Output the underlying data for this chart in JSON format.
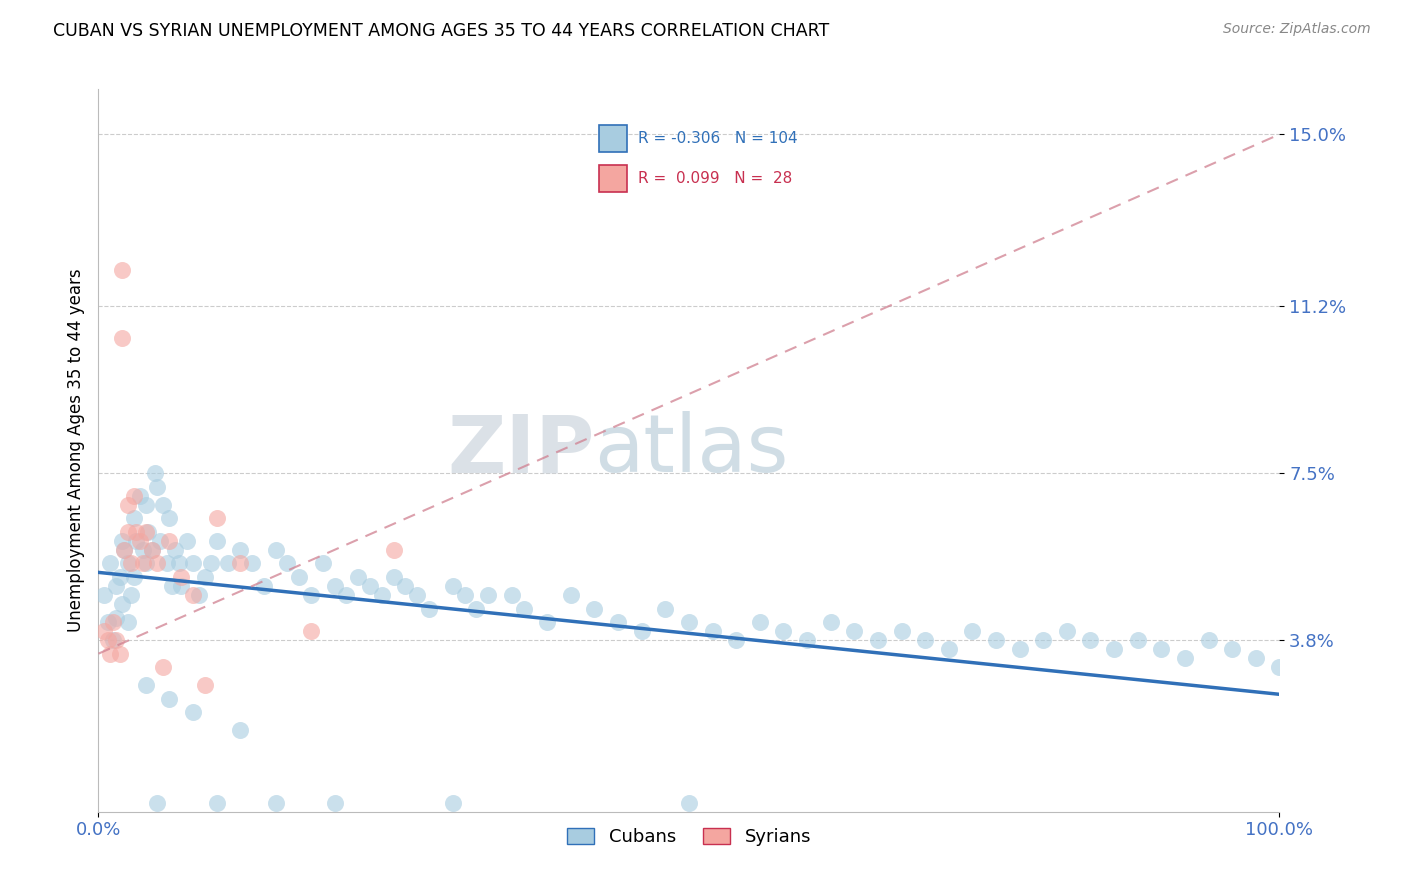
{
  "title": "CUBAN VS SYRIAN UNEMPLOYMENT AMONG AGES 35 TO 44 YEARS CORRELATION CHART",
  "source": "Source: ZipAtlas.com",
  "ylabel": "Unemployment Among Ages 35 to 44 years",
  "xlim": [
    0,
    1.0
  ],
  "ylim": [
    0,
    0.16
  ],
  "ytick_vals": [
    0.038,
    0.075,
    0.112,
    0.15
  ],
  "ytick_labels": [
    "3.8%",
    "7.5%",
    "11.2%",
    "15.0%"
  ],
  "xtick_vals": [
    0.0,
    1.0
  ],
  "xtick_labels": [
    "0.0%",
    "100.0%"
  ],
  "cubans_R": "-0.306",
  "cubans_N": "104",
  "syrians_R": "0.099",
  "syrians_N": "28",
  "blue_scatter_color": "#a8cce0",
  "pink_scatter_color": "#f4a6a0",
  "blue_line_color": "#3070b8",
  "pink_line_color": "#c83050",
  "pink_dash_color": "#d08090",
  "tick_color": "#4472c4",
  "watermark_zip": "ZIP",
  "watermark_atlas": "atlas",
  "cubans_x": [
    0.005,
    0.008,
    0.01,
    0.012,
    0.015,
    0.015,
    0.018,
    0.02,
    0.02,
    0.022,
    0.025,
    0.025,
    0.028,
    0.03,
    0.03,
    0.032,
    0.035,
    0.038,
    0.04,
    0.04,
    0.042,
    0.045,
    0.048,
    0.05,
    0.052,
    0.055,
    0.058,
    0.06,
    0.062,
    0.065,
    0.068,
    0.07,
    0.075,
    0.08,
    0.085,
    0.09,
    0.095,
    0.1,
    0.11,
    0.12,
    0.13,
    0.14,
    0.15,
    0.16,
    0.17,
    0.18,
    0.19,
    0.2,
    0.21,
    0.22,
    0.23,
    0.24,
    0.25,
    0.26,
    0.27,
    0.28,
    0.3,
    0.31,
    0.32,
    0.33,
    0.35,
    0.36,
    0.38,
    0.4,
    0.42,
    0.44,
    0.46,
    0.48,
    0.5,
    0.52,
    0.54,
    0.56,
    0.58,
    0.6,
    0.62,
    0.64,
    0.66,
    0.68,
    0.7,
    0.72,
    0.74,
    0.76,
    0.78,
    0.8,
    0.82,
    0.84,
    0.86,
    0.88,
    0.9,
    0.92,
    0.94,
    0.96,
    0.98,
    1.0,
    0.05,
    0.1,
    0.15,
    0.2,
    0.3,
    0.5,
    0.04,
    0.06,
    0.08,
    0.12
  ],
  "cubans_y": [
    0.048,
    0.042,
    0.055,
    0.038,
    0.05,
    0.043,
    0.052,
    0.06,
    0.046,
    0.058,
    0.055,
    0.042,
    0.048,
    0.065,
    0.052,
    0.06,
    0.07,
    0.058,
    0.068,
    0.055,
    0.062,
    0.058,
    0.075,
    0.072,
    0.06,
    0.068,
    0.055,
    0.065,
    0.05,
    0.058,
    0.055,
    0.05,
    0.06,
    0.055,
    0.048,
    0.052,
    0.055,
    0.06,
    0.055,
    0.058,
    0.055,
    0.05,
    0.058,
    0.055,
    0.052,
    0.048,
    0.055,
    0.05,
    0.048,
    0.052,
    0.05,
    0.048,
    0.052,
    0.05,
    0.048,
    0.045,
    0.05,
    0.048,
    0.045,
    0.048,
    0.048,
    0.045,
    0.042,
    0.048,
    0.045,
    0.042,
    0.04,
    0.045,
    0.042,
    0.04,
    0.038,
    0.042,
    0.04,
    0.038,
    0.042,
    0.04,
    0.038,
    0.04,
    0.038,
    0.036,
    0.04,
    0.038,
    0.036,
    0.038,
    0.04,
    0.038,
    0.036,
    0.038,
    0.036,
    0.034,
    0.038,
    0.036,
    0.034,
    0.032,
    0.002,
    0.002,
    0.002,
    0.002,
    0.002,
    0.002,
    0.028,
    0.025,
    0.022,
    0.018
  ],
  "syrians_x": [
    0.005,
    0.008,
    0.01,
    0.012,
    0.015,
    0.018,
    0.02,
    0.02,
    0.022,
    0.025,
    0.025,
    0.028,
    0.03,
    0.032,
    0.035,
    0.038,
    0.04,
    0.045,
    0.05,
    0.055,
    0.06,
    0.07,
    0.08,
    0.09,
    0.1,
    0.12,
    0.18,
    0.25
  ],
  "syrians_y": [
    0.04,
    0.038,
    0.035,
    0.042,
    0.038,
    0.035,
    0.12,
    0.105,
    0.058,
    0.068,
    0.062,
    0.055,
    0.07,
    0.062,
    0.06,
    0.055,
    0.062,
    0.058,
    0.055,
    0.032,
    0.06,
    0.052,
    0.048,
    0.028,
    0.065,
    0.055,
    0.04,
    0.058
  ],
  "cuban_line_x0": 0.0,
  "cuban_line_y0": 0.053,
  "cuban_line_x1": 1.0,
  "cuban_line_y1": 0.026,
  "syrian_line_x0": 0.0,
  "syrian_line_y0": 0.035,
  "syrian_line_x1": 1.0,
  "syrian_line_y1": 0.15
}
